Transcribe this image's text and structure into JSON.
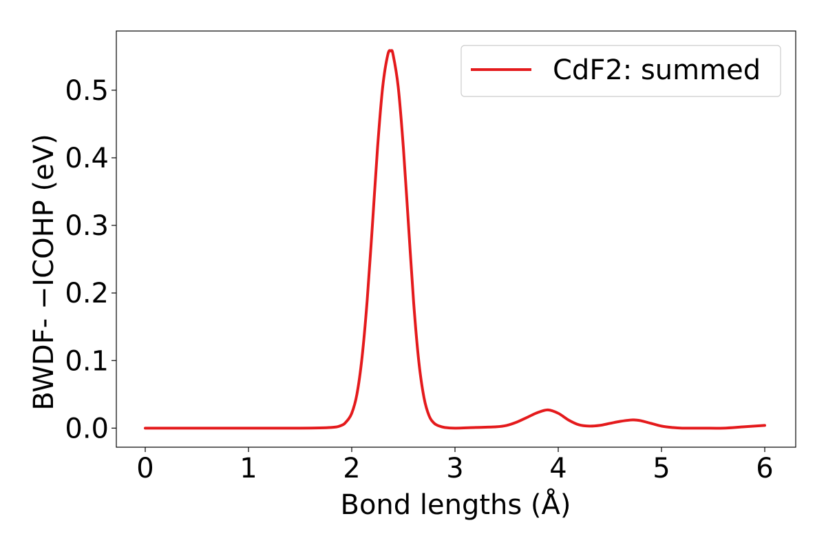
{
  "chart_data": {
    "type": "line",
    "title": "",
    "xlabel": "Bond lengths (Å)",
    "ylabel": "BWDF- −ICOHP (eV)",
    "xlim": [
      -0.28,
      6.3
    ],
    "ylim": [
      -0.0282,
      0.5876
    ],
    "x_ticks": [
      0,
      1,
      2,
      3,
      4,
      5,
      6
    ],
    "x_tick_labels": [
      "0",
      "1",
      "2",
      "3",
      "4",
      "5",
      "6"
    ],
    "y_ticks": [
      0.0,
      0.1,
      0.2,
      0.3,
      0.4,
      0.5
    ],
    "y_tick_labels": [
      "0.0",
      "0.1",
      "0.2",
      "0.3",
      "0.4",
      "0.5"
    ],
    "grid": false,
    "legend_position": "top-right",
    "series": [
      {
        "name": "CdF2: summed",
        "color": "#e41a1c",
        "x": [
          0.0,
          0.5,
          1.0,
          1.5,
          1.8,
          1.9,
          1.95,
          2.0,
          2.05,
          2.1,
          2.15,
          2.2,
          2.25,
          2.3,
          2.35,
          2.38,
          2.4,
          2.45,
          2.5,
          2.55,
          2.6,
          2.65,
          2.7,
          2.75,
          2.8,
          2.85,
          2.9,
          3.0,
          3.2,
          3.4,
          3.5,
          3.6,
          3.7,
          3.8,
          3.9,
          4.0,
          4.1,
          4.2,
          4.3,
          4.4,
          4.5,
          4.6,
          4.7,
          4.75,
          4.8,
          4.9,
          5.0,
          5.1,
          5.2,
          5.4,
          5.6,
          5.8,
          6.0
        ],
        "y": [
          0.0,
          0.0,
          0.0,
          0.0,
          0.001,
          0.004,
          0.01,
          0.022,
          0.05,
          0.105,
          0.19,
          0.3,
          0.415,
          0.505,
          0.553,
          0.558,
          0.553,
          0.505,
          0.415,
          0.3,
          0.185,
          0.098,
          0.045,
          0.018,
          0.007,
          0.003,
          0.001,
          0.0,
          0.001,
          0.002,
          0.004,
          0.009,
          0.016,
          0.023,
          0.027,
          0.022,
          0.012,
          0.005,
          0.003,
          0.004,
          0.007,
          0.01,
          0.012,
          0.012,
          0.011,
          0.007,
          0.003,
          0.001,
          0.0,
          0.0,
          0.0,
          0.002,
          0.004
        ]
      }
    ]
  }
}
